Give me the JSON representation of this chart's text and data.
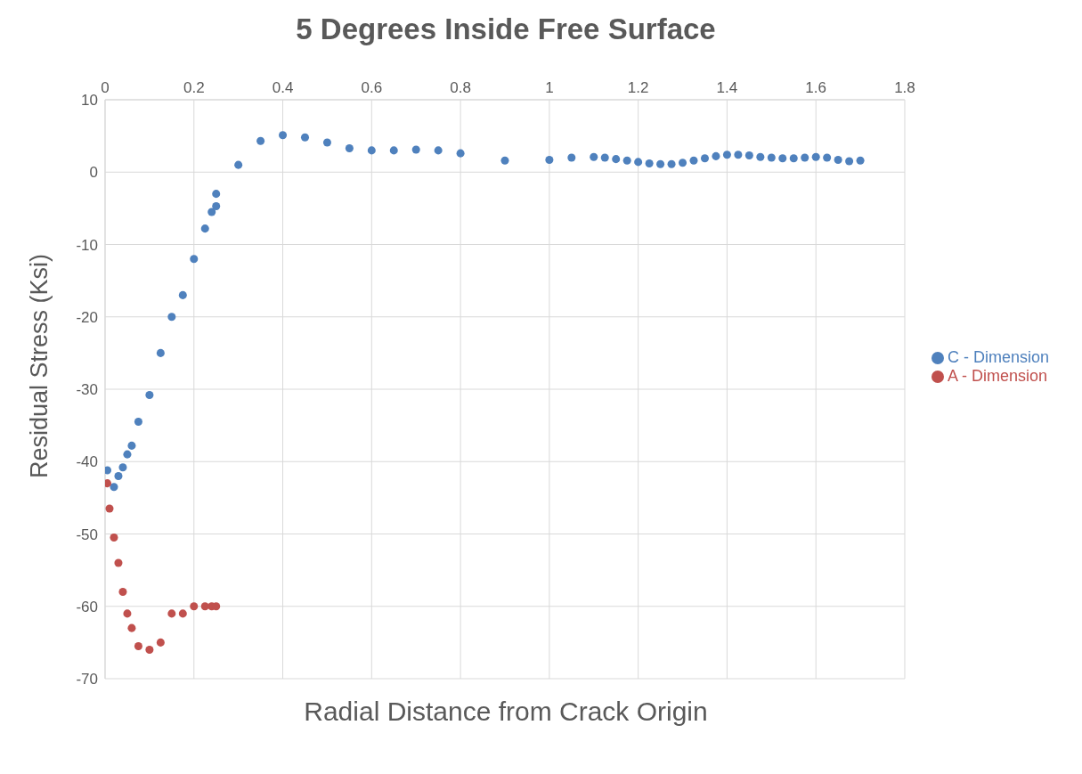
{
  "chart_data": {
    "type": "scatter",
    "title": "5 Degrees Inside Free Surface",
    "xlabel": "Radial Distance from Crack Origin",
    "ylabel": "Residual Stress (Ksi)",
    "xlim": [
      0,
      1.8
    ],
    "xticks": [
      0,
      0.2,
      0.4,
      0.6,
      0.8,
      1,
      1.2,
      1.4,
      1.6,
      1.8
    ],
    "ylim": [
      -70,
      10
    ],
    "yticks": [
      -70,
      -60,
      -50,
      -40,
      -30,
      -20,
      -10,
      0,
      10
    ],
    "grid": true,
    "legend": "right",
    "marker": "circle",
    "series": [
      {
        "name": "C - Dimension",
        "color": "#4f81bd",
        "x": [
          0.005,
          0.02,
          0.03,
          0.04,
          0.05,
          0.06,
          0.075,
          0.1,
          0.125,
          0.15,
          0.175,
          0.2,
          0.225,
          0.24,
          0.25,
          0.25,
          0.3,
          0.35,
          0.4,
          0.45,
          0.5,
          0.55,
          0.6,
          0.65,
          0.7,
          0.75,
          0.8,
          0.9,
          1.0,
          1.05,
          1.1,
          1.125,
          1.15,
          1.175,
          1.2,
          1.225,
          1.25,
          1.275,
          1.3,
          1.325,
          1.35,
          1.375,
          1.4,
          1.425,
          1.45,
          1.475,
          1.5,
          1.525,
          1.55,
          1.575,
          1.6,
          1.625,
          1.65,
          1.675,
          1.7
        ],
        "values": [
          -41.2,
          -43.5,
          -42,
          -40.8,
          -39,
          -37.8,
          -34.5,
          -30.8,
          -25,
          -20,
          -17,
          -12,
          -7.8,
          -5.5,
          -4.7,
          -3,
          1,
          4.3,
          5.1,
          4.8,
          4.1,
          3.3,
          3,
          3,
          3.1,
          3,
          2.6,
          1.6,
          1.7,
          2,
          2.1,
          2,
          1.8,
          1.6,
          1.4,
          1.2,
          1.1,
          1.1,
          1.3,
          1.6,
          1.9,
          2.2,
          2.4,
          2.4,
          2.3,
          2.1,
          2,
          1.9,
          1.9,
          2,
          2.1,
          2,
          1.7,
          1.5,
          1.6
        ]
      },
      {
        "name": "A - Dimension",
        "color": "#c0504d",
        "x": [
          0.005,
          0.01,
          0.02,
          0.03,
          0.04,
          0.05,
          0.06,
          0.075,
          0.1,
          0.125,
          0.15,
          0.175,
          0.2,
          0.225,
          0.24,
          0.25
        ],
        "values": [
          -43,
          -46.5,
          -50.5,
          -54,
          -58,
          -61,
          -63,
          -65.5,
          -66,
          -65,
          -61,
          -61,
          -60,
          -60,
          -60,
          -60
        ]
      }
    ]
  }
}
